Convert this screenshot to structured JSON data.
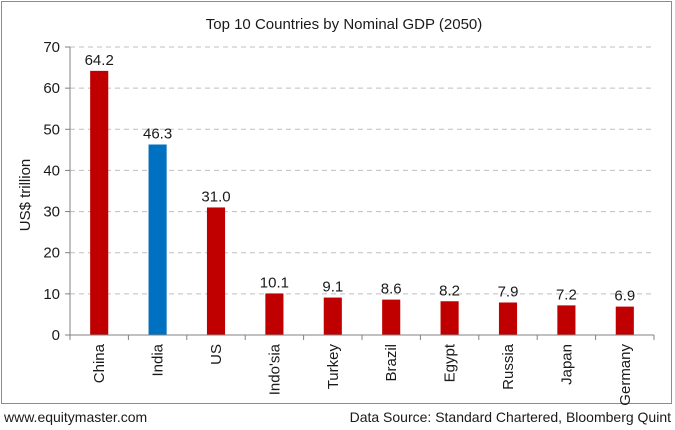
{
  "footer": {
    "website": "www.equitymaster.com",
    "source": "Data Source: Standard Chartered, Bloomberg Quint"
  },
  "colors": {
    "default_bar": "#c00000",
    "highlight_bar": "#0070c0",
    "gridline": "#bfbfbf",
    "axis": "#808080"
  },
  "chart_data": {
    "type": "bar",
    "title": "Top 10 Countries by Nominal GDP (2050)",
    "xlabel": "",
    "ylabel": "US$ trillion",
    "ylim": [
      0,
      70
    ],
    "yticks": [
      0,
      10,
      20,
      30,
      40,
      50,
      60,
      70
    ],
    "grid": true,
    "legend": "none",
    "categories": [
      "China",
      "India",
      "US",
      "Indo'sia",
      "Turkey",
      "Brazil",
      "Egypt",
      "Russia",
      "Japan",
      "Germany"
    ],
    "values": [
      64.2,
      46.3,
      31.0,
      10.1,
      9.1,
      8.6,
      8.2,
      7.9,
      7.2,
      6.9
    ],
    "value_labels": [
      "64.2",
      "46.3",
      "31.0",
      "10.1",
      "9.1",
      "8.6",
      "8.2",
      "7.9",
      "7.2",
      "6.9"
    ],
    "highlighted_category": "India"
  }
}
